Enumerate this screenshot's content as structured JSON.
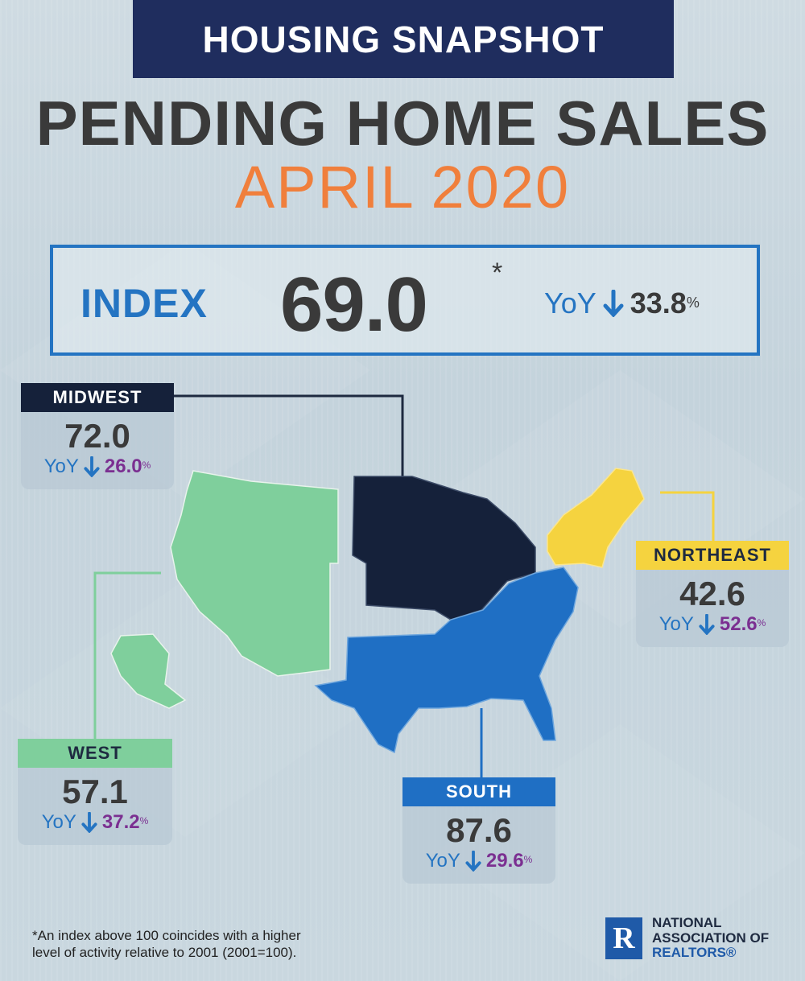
{
  "banner": "HOUSING SNAPSHOT",
  "title": "PENDING HOME SALES",
  "subtitle": "APRIL 2020",
  "index": {
    "label": "INDEX",
    "value": "69.0",
    "asterisk": "*",
    "yoy_label": "YoY",
    "yoy_value": "33.8",
    "pct_sign": "%"
  },
  "regions": {
    "midwest": {
      "name": "MIDWEST",
      "value": "72.0",
      "yoy_label": "YoY",
      "yoy_value": "26.0",
      "pct_sign": "%"
    },
    "northeast": {
      "name": "NORTHEAST",
      "value": "42.6",
      "yoy_label": "YoY",
      "yoy_value": "52.6",
      "pct_sign": "%"
    },
    "west": {
      "name": "WEST",
      "value": "57.1",
      "yoy_label": "YoY",
      "yoy_value": "37.2",
      "pct_sign": "%"
    },
    "south": {
      "name": "SOUTH",
      "value": "87.6",
      "yoy_label": "YoY",
      "yoy_value": "29.6",
      "pct_sign": "%"
    }
  },
  "colors": {
    "banner": "#1f2d5e",
    "accent_orange": "#f07f3c",
    "blue": "#2474c2",
    "midwest": "#15213a",
    "northeast": "#f5d33f",
    "west": "#7fcf9c",
    "south": "#1f6fc4",
    "yoy_pct": "#7b2f91"
  },
  "footnote_lines": [
    "*An index above 100 coincides with a higher",
    "level of activity relative to 2001 (2001=100)."
  ],
  "logo": {
    "mark": "R",
    "line1": "NATIONAL",
    "line2": "ASSOCIATION OF",
    "line3": "REALTORS®"
  }
}
